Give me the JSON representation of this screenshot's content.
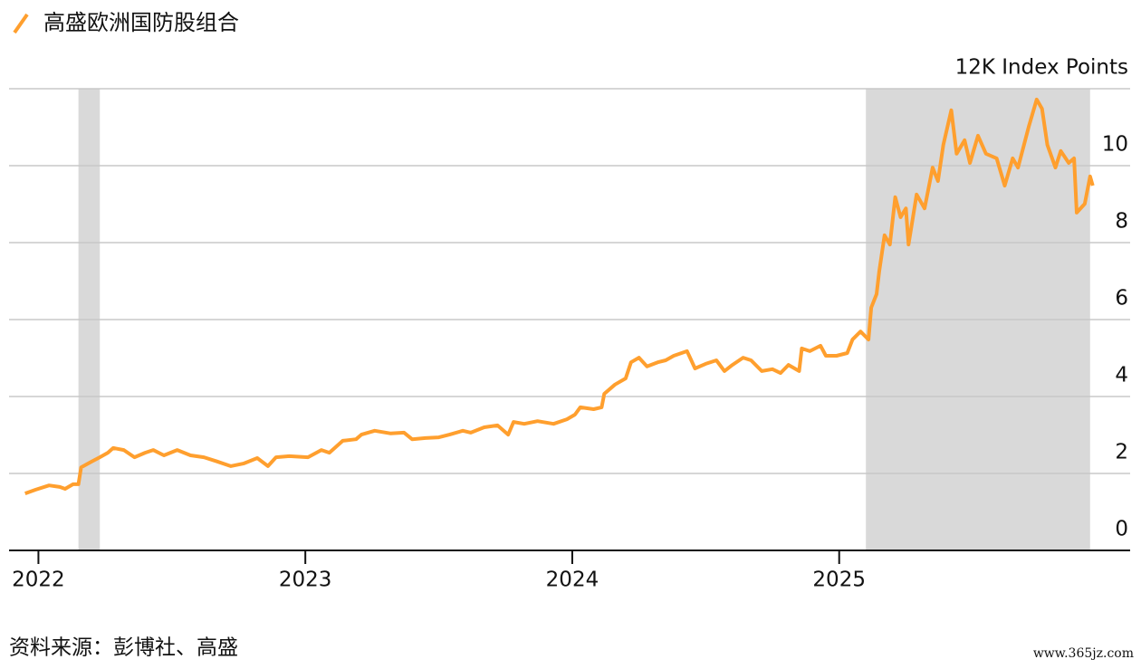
{
  "chart_data": {
    "type": "line",
    "source": "资料来源：彭博社、高盛",
    "watermark": "www.365jz.com",
    "xlim": [
      2021.89,
      2026.09
    ],
    "xticks": [
      2022,
      2023,
      2024,
      2025
    ],
    "ylim": [
      0,
      12
    ],
    "yticks": [
      0,
      2,
      4,
      6,
      8,
      10,
      {
        "value": 12,
        "label": "12K Index Points"
      }
    ],
    "grid": true,
    "shade_color": "#d9d9d9",
    "shaded_periods": [
      {
        "start": 2022.15,
        "end": 2022.23
      },
      {
        "start": 2025.1,
        "end": 2025.94
      }
    ],
    "x": [
      2021.95,
      2021.99,
      2022.04,
      2022.08,
      2022.1,
      2022.13,
      2022.15,
      2022.16,
      2022.2,
      2022.23,
      2022.26,
      2022.28,
      2022.32,
      2022.36,
      2022.4,
      2022.43,
      2022.47,
      2022.52,
      2022.57,
      2022.62,
      2022.67,
      2022.72,
      2022.77,
      2022.82,
      2022.86,
      2022.89,
      2022.94,
      2023.01,
      2023.06,
      2023.09,
      2023.14,
      2023.19,
      2023.21,
      2023.26,
      2023.32,
      2023.37,
      2023.4,
      2023.45,
      2023.5,
      2023.54,
      2023.59,
      2023.62,
      2023.67,
      2023.72,
      2023.76,
      2023.78,
      2023.82,
      2023.87,
      2023.93,
      2023.98,
      2024.01,
      2024.03,
      2024.08,
      2024.11,
      2024.12,
      2024.16,
      2024.2,
      2024.22,
      2024.25,
      2024.28,
      2024.32,
      2024.35,
      2024.38,
      2024.43,
      2024.46,
      2024.5,
      2024.54,
      2024.57,
      2024.6,
      2024.64,
      2024.67,
      2024.71,
      2024.75,
      2024.78,
      2024.81,
      2024.85,
      2024.86,
      2024.89,
      2024.93,
      2024.95,
      2024.99,
      2025.03,
      2025.05,
      2025.08,
      2025.11,
      2025.12,
      2025.14,
      2025.15,
      2025.17,
      2025.19,
      2025.21,
      2025.23,
      2025.25,
      2025.26,
      2025.29,
      2025.32,
      2025.35,
      2025.37,
      2025.39,
      2025.42,
      2025.44,
      2025.47,
      2025.49,
      2025.52,
      2025.55,
      2025.59,
      2025.62,
      2025.65,
      2025.67,
      2025.71,
      2025.74,
      2025.76,
      2025.78,
      2025.81,
      2025.83,
      2025.86,
      2025.88,
      2025.89,
      2025.92,
      2025.94,
      2025.95
    ],
    "series": [
      {
        "name": "高盛欧洲国防股组合",
        "color": "#ff9f2e",
        "values": [
          1.48,
          1.58,
          1.69,
          1.65,
          1.6,
          1.72,
          1.72,
          2.16,
          2.31,
          2.42,
          2.54,
          2.66,
          2.61,
          2.42,
          2.54,
          2.61,
          2.47,
          2.61,
          2.47,
          2.42,
          2.31,
          2.19,
          2.26,
          2.4,
          2.19,
          2.42,
          2.45,
          2.42,
          2.61,
          2.54,
          2.85,
          2.89,
          3.01,
          3.11,
          3.04,
          3.06,
          2.89,
          2.92,
          2.94,
          3.01,
          3.11,
          3.06,
          3.2,
          3.25,
          3.01,
          3.34,
          3.29,
          3.36,
          3.29,
          3.41,
          3.53,
          3.72,
          3.67,
          3.72,
          4.07,
          4.31,
          4.47,
          4.89,
          5.01,
          4.78,
          4.89,
          4.94,
          5.06,
          5.18,
          4.73,
          4.85,
          4.94,
          4.66,
          4.82,
          5.01,
          4.94,
          4.66,
          4.71,
          4.61,
          4.82,
          4.66,
          5.25,
          5.18,
          5.32,
          5.06,
          5.06,
          5.13,
          5.48,
          5.69,
          5.48,
          6.31,
          6.66,
          7.25,
          8.19,
          7.95,
          9.18,
          8.66,
          8.89,
          7.95,
          9.25,
          8.89,
          9.95,
          9.6,
          10.54,
          11.44,
          10.31,
          10.66,
          10.07,
          10.78,
          10.31,
          10.19,
          9.48,
          10.19,
          9.95,
          11.01,
          11.72,
          11.48,
          10.54,
          9.95,
          10.38,
          10.07,
          10.19,
          8.78,
          9.01,
          9.72,
          9.48
        ]
      }
    ]
  }
}
